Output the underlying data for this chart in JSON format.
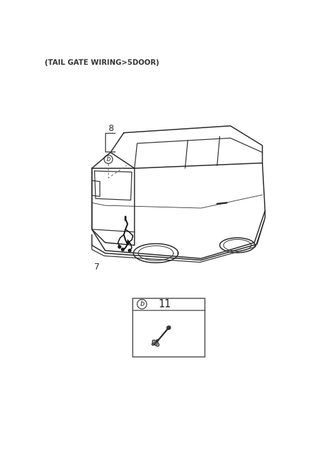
{
  "title": "(TAIL GATE WIRING>5DOOR)",
  "title_fontsize": 7.5,
  "title_color": "#333333",
  "bg_color": "#ffffff",
  "label_8": "8",
  "label_7": "7",
  "label_11": "11",
  "fig_width": 4.8,
  "fig_height": 6.56,
  "dpi": 100
}
